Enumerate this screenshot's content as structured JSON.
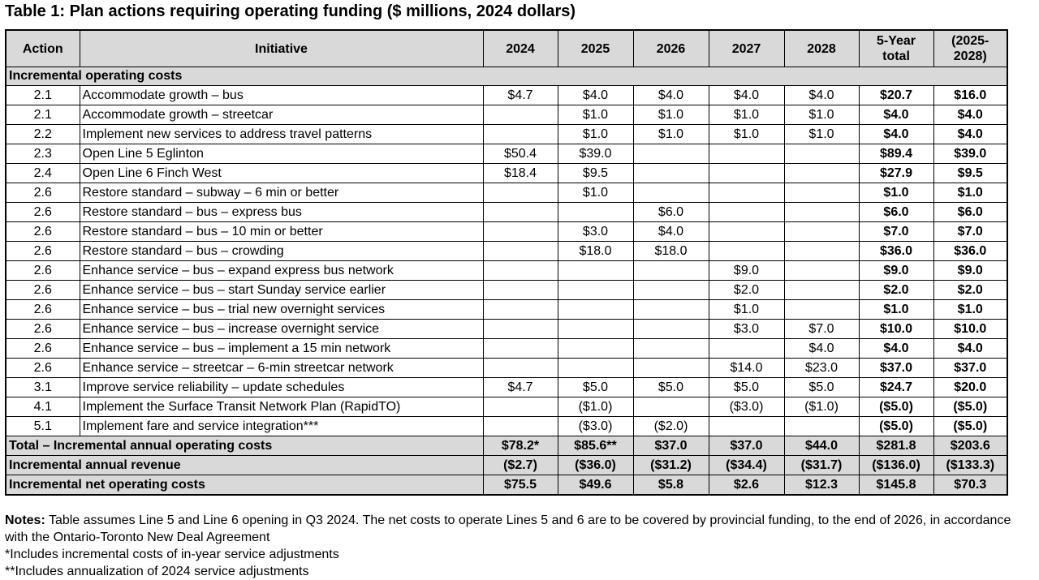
{
  "title": "Table 1:  Plan actions requiring operating funding ($ millions, 2024 dollars)",
  "headers": {
    "action": "Action",
    "initiative": "Initiative",
    "y2024": "2024",
    "y2025": "2025",
    "y2026": "2026",
    "y2027": "2027",
    "y2028": "2028",
    "five_year_l1": "5-Year",
    "five_year_l2": "total",
    "range_l1": "(2025-",
    "range_l2": "2028)"
  },
  "section_label": "Incremental operating costs",
  "rows": [
    {
      "action": "2.1",
      "initiative": "Accommodate growth – bus",
      "c2024": "$4.7",
      "c2025": "$4.0",
      "c2026": "$4.0",
      "c2027": "$4.0",
      "c2028": "$4.0",
      "total": "$20.7",
      "range": "$16.0"
    },
    {
      "action": "2.1",
      "initiative": "Accommodate growth – streetcar",
      "c2024": "",
      "c2025": "$1.0",
      "c2026": "$1.0",
      "c2027": "$1.0",
      "c2028": "$1.0",
      "total": "$4.0",
      "range": "$4.0"
    },
    {
      "action": "2.2",
      "initiative": "Implement new services to address travel patterns",
      "c2024": "",
      "c2025": "$1.0",
      "c2026": "$1.0",
      "c2027": "$1.0",
      "c2028": "$1.0",
      "total": "$4.0",
      "range": "$4.0"
    },
    {
      "action": "2.3",
      "initiative": "Open Line 5 Eglinton",
      "c2024": "$50.4",
      "c2025": "$39.0",
      "c2026": "",
      "c2027": "",
      "c2028": "",
      "total": "$89.4",
      "range": "$39.0"
    },
    {
      "action": "2.4",
      "initiative": "Open Line 6 Finch West",
      "c2024": "$18.4",
      "c2025": "$9.5",
      "c2026": "",
      "c2027": "",
      "c2028": "",
      "total": "$27.9",
      "range": "$9.5"
    },
    {
      "action": "2.6",
      "initiative": "Restore standard – subway – 6 min or better",
      "c2024": "",
      "c2025": "$1.0",
      "c2026": "",
      "c2027": "",
      "c2028": "",
      "total": "$1.0",
      "range": "$1.0"
    },
    {
      "action": "2.6",
      "initiative": "Restore standard – bus – express bus",
      "c2024": "",
      "c2025": "",
      "c2026": "$6.0",
      "c2027": "",
      "c2028": "",
      "total": "$6.0",
      "range": "$6.0"
    },
    {
      "action": "2.6",
      "initiative": "Restore standard – bus – 10 min or better",
      "c2024": "",
      "c2025": "$3.0",
      "c2026": "$4.0",
      "c2027": "",
      "c2028": "",
      "total": "$7.0",
      "range": "$7.0"
    },
    {
      "action": "2.6",
      "initiative": "Restore standard – bus – crowding",
      "c2024": "",
      "c2025": "$18.0",
      "c2026": "$18.0",
      "c2027": "",
      "c2028": "",
      "total": "$36.0",
      "range": "$36.0"
    },
    {
      "action": "2.6",
      "initiative": "Enhance service – bus – expand express bus network",
      "c2024": "",
      "c2025": "",
      "c2026": "",
      "c2027": "$9.0",
      "c2028": "",
      "total": "$9.0",
      "range": "$9.0"
    },
    {
      "action": "2.6",
      "initiative": "Enhance service – bus – start Sunday service earlier",
      "c2024": "",
      "c2025": "",
      "c2026": "",
      "c2027": "$2.0",
      "c2028": "",
      "total": "$2.0",
      "range": "$2.0"
    },
    {
      "action": "2.6",
      "initiative": "Enhance service – bus – trial new overnight services",
      "c2024": "",
      "c2025": "",
      "c2026": "",
      "c2027": "$1.0",
      "c2028": "",
      "total": "$1.0",
      "range": "$1.0"
    },
    {
      "action": "2.6",
      "initiative": "Enhance service – bus – increase overnight service",
      "c2024": "",
      "c2025": "",
      "c2026": "",
      "c2027": "$3.0",
      "c2028": "$7.0",
      "total": "$10.0",
      "range": "$10.0"
    },
    {
      "action": "2.6",
      "initiative": "Enhance service – bus – implement a 15 min network",
      "c2024": "",
      "c2025": "",
      "c2026": "",
      "c2027": "",
      "c2028": "$4.0",
      "total": "$4.0",
      "range": "$4.0"
    },
    {
      "action": "2.6",
      "initiative": "Enhance service – streetcar – 6-min streetcar network",
      "c2024": "",
      "c2025": "",
      "c2026": "",
      "c2027": "$14.0",
      "c2028": "$23.0",
      "total": "$37.0",
      "range": "$37.0"
    },
    {
      "action": "3.1",
      "initiative": "Improve service reliability – update schedules",
      "c2024": "$4.7",
      "c2025": "$5.0",
      "c2026": "$5.0",
      "c2027": "$5.0",
      "c2028": "$5.0",
      "total": "$24.7",
      "range": "$20.0"
    },
    {
      "action": "4.1",
      "initiative": "Implement the Surface Transit Network Plan (RapidTO)",
      "c2024": "",
      "c2025": "($1.0)",
      "c2026": "",
      "c2027": "($3.0)",
      "c2028": "($1.0)",
      "total": "($5.0)",
      "range": "($5.0)"
    },
    {
      "action": "5.1",
      "initiative": "Implement fare and service integration***",
      "c2024": "",
      "c2025": "($3.0)",
      "c2026": "($2.0)",
      "c2027": "",
      "c2028": "",
      "total": "($5.0)",
      "range": "($5.0)"
    }
  ],
  "summary_rows": [
    {
      "label": "Total – Incremental annual operating costs",
      "c2024": "$78.2*",
      "c2025": "$85.6**",
      "c2026": "$37.0",
      "c2027": "$37.0",
      "c2028": "$44.0",
      "total": "$281.8",
      "range": "$203.6"
    },
    {
      "label": "Incremental annual revenue",
      "c2024": "($2.7)",
      "c2025": "($36.0)",
      "c2026": "($31.2)",
      "c2027": "($34.4)",
      "c2028": "($31.7)",
      "total": "($136.0)",
      "range": "($133.3)"
    },
    {
      "label": "Incremental net operating costs",
      "c2024": "$75.5",
      "c2025": "$49.6",
      "c2026": "$5.8",
      "c2027": "$2.6",
      "c2028": "$12.3",
      "total": "$145.8",
      "range": "$70.3"
    }
  ],
  "notes": {
    "label": "Notes:",
    "text": " Table assumes Line 5 and Line 6 opening in Q3 2024. The net costs to operate Lines 5 and 6 are to be covered by provincial funding, to the end of 2026, in accordance with the Ontario-Toronto New Deal Agreement",
    "line2": "*Includes incremental costs of in-year service adjustments",
    "line3": "**Includes annualization of 2024 service adjustments"
  }
}
